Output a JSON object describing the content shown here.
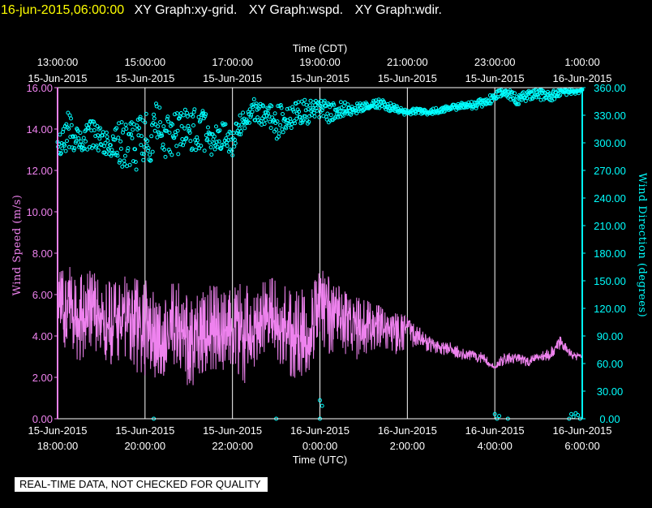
{
  "header": {
    "timestamp": "16-jun-2015,06:00:00",
    "titles": [
      "XY Graph:xy-grid.",
      "XY Graph:wspd.",
      "XY Graph:wdir."
    ]
  },
  "footer_note": "REAL-TIME DATA, NOT CHECKED FOR QUALITY",
  "colors": {
    "background": "#000000",
    "grid": "#ffffff",
    "wind_speed": "#ee82ee",
    "wind_direction": "#00ffff",
    "timestamp": "#ffff00",
    "text": "#ffffff"
  },
  "chart_data": {
    "type": "line",
    "top_axis": {
      "title": "Time (CDT)",
      "ticks": [
        {
          "time": "13:00:00",
          "date": "15-Jun-2015"
        },
        {
          "time": "15:00:00",
          "date": "15-Jun-2015"
        },
        {
          "time": "17:00:00",
          "date": "15-Jun-2015"
        },
        {
          "time": "19:00:00",
          "date": "15-Jun-2015"
        },
        {
          "time": "21:00:00",
          "date": "15-Jun-2015"
        },
        {
          "time": "23:00:00",
          "date": "15-Jun-2015"
        },
        {
          "time": "1:00:00",
          "date": "16-Jun-2015"
        }
      ]
    },
    "bottom_axis": {
      "title": "Time (UTC)",
      "range": [
        "2015-06-15 18:00",
        "2015-06-16 06:00"
      ],
      "ticks": [
        {
          "date": "15-Jun-2015",
          "time": "18:00:00"
        },
        {
          "date": "15-Jun-2015",
          "time": "20:00:00"
        },
        {
          "date": "15-Jun-2015",
          "time": "22:00:00"
        },
        {
          "date": "16-Jun-2015",
          "time": "0:00:00"
        },
        {
          "date": "16-Jun-2015",
          "time": "2:00:00"
        },
        {
          "date": "16-Jun-2015",
          "time": "4:00:00"
        },
        {
          "date": "16-Jun-2015",
          "time": "6:00:00"
        }
      ]
    },
    "left_axis": {
      "title": "Wind Speed (m/s)",
      "range": [
        0,
        16
      ],
      "ticks": [
        "0.00",
        "2.00",
        "4.00",
        "6.00",
        "8.00",
        "10.00",
        "12.00",
        "14.00",
        "16.00"
      ]
    },
    "right_axis": {
      "title": "Wind Direction (degrees)",
      "range": [
        0,
        360
      ],
      "ticks": [
        "0.00",
        "30.00",
        "60.00",
        "90.00",
        "120.00",
        "150.00",
        "180.00",
        "210.00",
        "240.00",
        "270.00",
        "300.00",
        "330.00",
        "360.00"
      ]
    },
    "grid": "vertical lines at each time tick",
    "series": [
      {
        "name": "wspd",
        "axis": "left",
        "style": "line",
        "x_hours_utc_since_2015-06-15_18:00": [
          0,
          0.25,
          0.5,
          0.75,
          1,
          1.25,
          1.5,
          1.75,
          2,
          2.25,
          2.5,
          2.75,
          3,
          3.25,
          3.5,
          3.75,
          4,
          4.25,
          4.5,
          4.75,
          5,
          5.25,
          5.5,
          5.75,
          6,
          6.25,
          6.5,
          6.75,
          7,
          7.25,
          7.5,
          7.75,
          8,
          8.25,
          8.5,
          8.75,
          9,
          9.25,
          9.5,
          9.75,
          10,
          10.25,
          10.5,
          10.75,
          11,
          11.25,
          11.5,
          11.75,
          12
        ],
        "values": [
          4.9,
          5.2,
          4.6,
          5.0,
          4.7,
          4.4,
          4.8,
          4.9,
          4.0,
          3.6,
          3.9,
          4.3,
          3.6,
          3.8,
          4.0,
          4.0,
          4.3,
          3.9,
          4.1,
          4.8,
          4.7,
          4.2,
          4.0,
          4.1,
          5.6,
          5.2,
          4.9,
          4.7,
          4.5,
          4.7,
          4.3,
          4.3,
          4.6,
          3.9,
          3.7,
          3.5,
          3.4,
          3.1,
          3.2,
          2.9,
          2.5,
          2.9,
          3.0,
          2.8,
          3.0,
          3.1,
          3.7,
          3.1,
          3.0
        ],
        "envelope_min": [
          3.2,
          3.0,
          2.7,
          3.4,
          2.8,
          2.4,
          3.1,
          2.2,
          2.0,
          1.8,
          2.1,
          2.6,
          1.3,
          2.0,
          2.2,
          2.3,
          2.4,
          1.6,
          2.5,
          2.8,
          2.6,
          2.1,
          1.9,
          2.2,
          3.7,
          3.0,
          3.2,
          2.7,
          3.1,
          3.3,
          3.2,
          3.1,
          3.4,
          3.5,
          3.2,
          3.1,
          3.0,
          2.8,
          2.8,
          2.6,
          2.4,
          2.6,
          2.7,
          2.5,
          2.8,
          2.8,
          3.3,
          2.9,
          2.7
        ],
        "envelope_max": [
          7.2,
          7.4,
          6.9,
          7.3,
          6.8,
          6.6,
          6.9,
          6.8,
          6.8,
          6.1,
          6.6,
          6.7,
          5.9,
          6.2,
          7.0,
          6.6,
          6.5,
          6.8,
          6.3,
          7.0,
          6.7,
          6.5,
          6.3,
          6.2,
          7.3,
          6.8,
          6.3,
          5.9,
          5.8,
          5.9,
          5.3,
          5.1,
          5.0,
          4.5,
          4.0,
          3.7,
          3.7,
          3.4,
          3.4,
          3.2,
          2.8,
          3.2,
          3.2,
          3.0,
          3.2,
          3.4,
          4.0,
          3.3,
          3.1
        ]
      },
      {
        "name": "wdir",
        "axis": "right",
        "style": "scatter",
        "x_hours_utc_since_2015-06-15_18:00": [
          0,
          0.25,
          0.5,
          0.75,
          1,
          1.25,
          1.5,
          1.75,
          2,
          2.25,
          2.5,
          2.75,
          3,
          3.25,
          3.5,
          3.75,
          4,
          4.25,
          4.5,
          4.75,
          5,
          5.25,
          5.5,
          5.75,
          6,
          6.25,
          6.5,
          6.75,
          7,
          7.25,
          7.5,
          7.75,
          8,
          8.25,
          8.5,
          8.75,
          9,
          9.25,
          9.5,
          9.75,
          10,
          10.25,
          10.5,
          10.75,
          11,
          11.25,
          11.5,
          11.75,
          12
        ],
        "values": [
          300,
          315,
          298,
          310,
          302,
          296,
          303,
          300,
          298,
          320,
          305,
          310,
          313,
          318,
          305,
          308,
          300,
          326,
          334,
          330,
          322,
          328,
          333,
          335,
          338,
          332,
          337,
          336,
          340,
          343,
          341,
          336,
          333,
          335,
          333,
          336,
          338,
          340,
          341,
          344,
          350,
          356,
          347,
          352,
          353,
          350,
          355,
          356,
          358
        ],
        "spread": [
          15,
          22,
          12,
          16,
          14,
          12,
          30,
          28,
          32,
          30,
          28,
          26,
          26,
          24,
          20,
          18,
          14,
          12,
          14,
          14,
          18,
          15,
          14,
          14,
          10,
          12,
          8,
          6,
          5,
          5,
          5,
          4,
          3,
          3,
          3,
          3,
          3,
          4,
          4,
          5,
          5,
          5,
          6,
          6,
          6,
          5,
          5,
          4,
          4
        ],
        "low_outliers": [
          [
            2.2,
            0
          ],
          [
            5.0,
            0
          ],
          [
            6.0,
            0
          ],
          [
            6.0,
            20
          ],
          [
            6.05,
            14
          ],
          [
            10.0,
            5
          ],
          [
            10.05,
            0
          ],
          [
            10.1,
            3
          ],
          [
            10.3,
            0
          ],
          [
            11.7,
            0
          ],
          [
            11.75,
            5
          ],
          [
            11.8,
            2
          ],
          [
            11.85,
            6
          ],
          [
            11.9,
            4
          ],
          [
            11.95,
            0
          ]
        ]
      }
    ]
  }
}
